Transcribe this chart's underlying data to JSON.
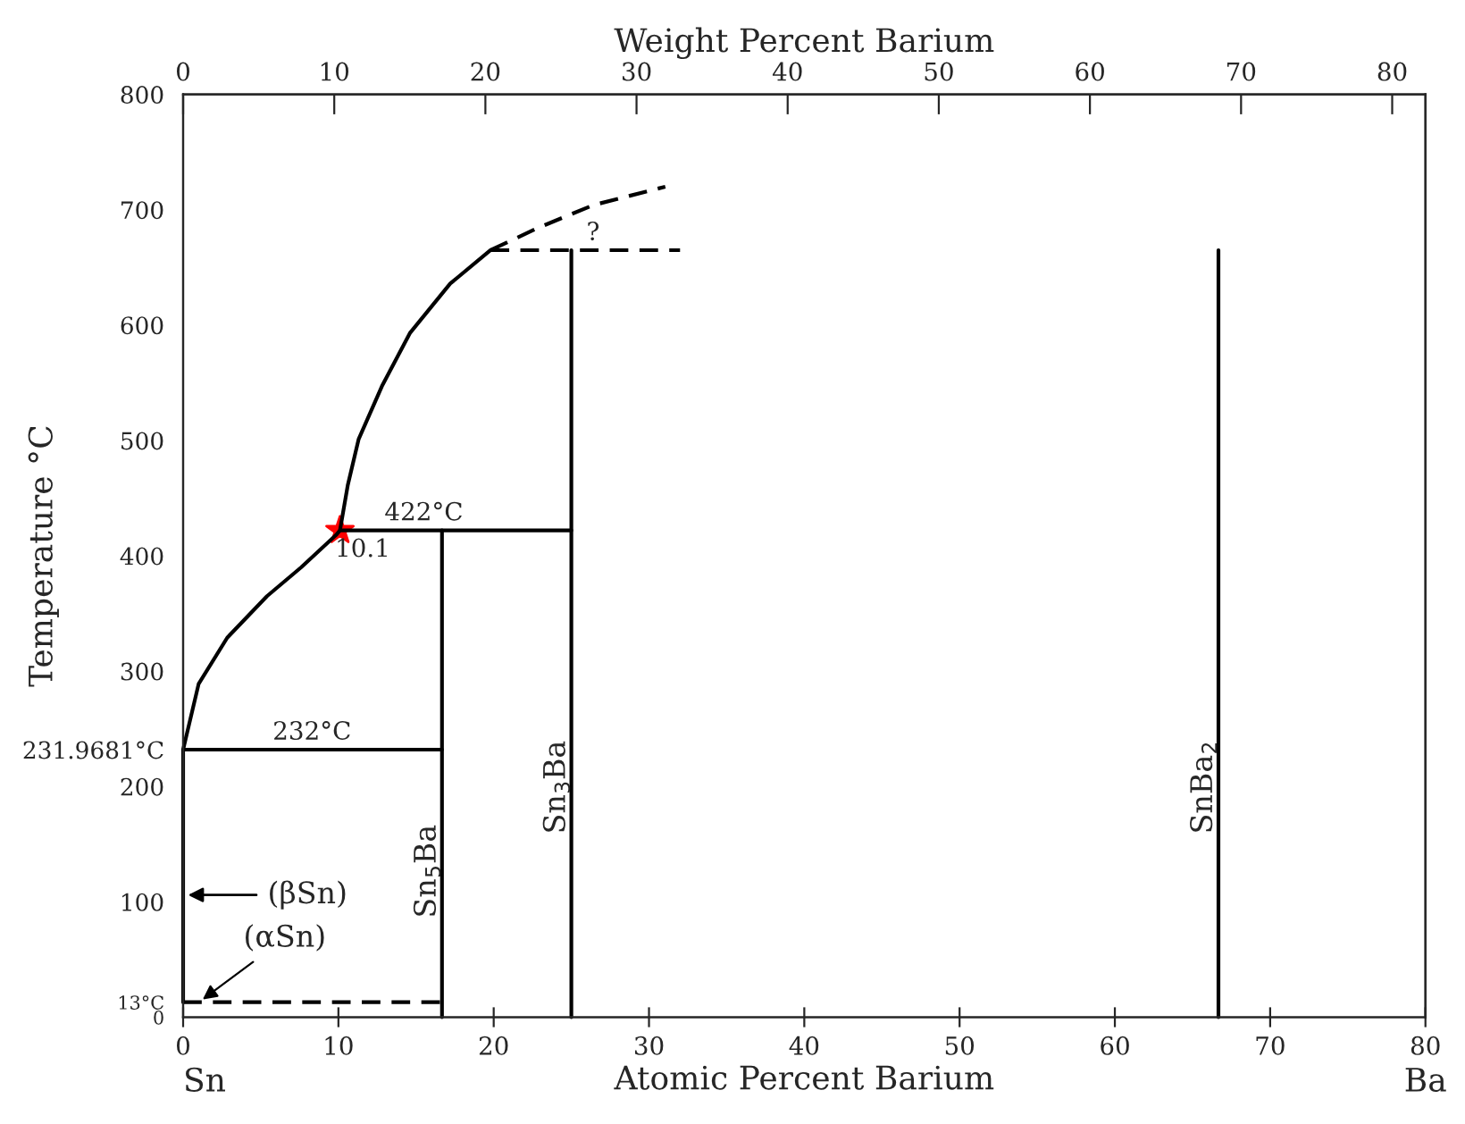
{
  "chart_data": {
    "type": "line",
    "xlabel": "Atomic Percent Barium",
    "ylabel": "Temperature °C",
    "x2label": "Weight Percent Barium",
    "xlim": [
      0,
      80
    ],
    "ylim": [
      0,
      800
    ],
    "xticks": [
      0,
      10,
      20,
      30,
      40,
      50,
      60,
      70,
      80
    ],
    "yticks": [
      0,
      {
        "value": 13,
        "label": "13°C"
      },
      100,
      {
        "value": 231.9681,
        "label": "231.9681°C"
      },
      200,
      300,
      400,
      500,
      600,
      700,
      800
    ],
    "x2lim": [
      0,
      82.2
    ],
    "x2ticks": [
      0,
      10,
      20,
      30,
      40,
      50,
      60,
      70,
      80
    ],
    "grid": false,
    "series": [
      {
        "color": "#000000",
        "line_style": "solid",
        "x": [
          0,
          0,
          1.0,
          2.84,
          5.4,
          7.6,
          9.85,
          10.1,
          10.6,
          11.3,
          12.8,
          14.6,
          17.2,
          19.8
        ],
        "values": [
          13,
          231.9681,
          289,
          329,
          365,
          390,
          418,
          422,
          461,
          501,
          547,
          593,
          636,
          665
        ]
      },
      {
        "color": "#000000",
        "line_style": "dashed",
        "x": [
          19.8,
          22.8,
          26.4,
          31.05
        ],
        "values": [
          665,
          684,
          704,
          720
        ]
      },
      {
        "color": "#000000",
        "line_style": "dashed",
        "x": [
          19.8,
          32
        ],
        "values": [
          665,
          665
        ]
      },
      {
        "color": "#000000",
        "line_style": "solid",
        "x": [
          10.1,
          25
        ],
        "values": [
          422,
          422
        ]
      },
      {
        "color": "#000000",
        "line_style": "solid",
        "x": [
          0,
          16.67
        ],
        "values": [
          231.9681,
          231.9681
        ]
      },
      {
        "color": "#000000",
        "line_style": "dashed",
        "x": [
          0,
          16.67
        ],
        "values": [
          13,
          13
        ]
      },
      {
        "name": "Sn$_{5}$Ba",
        "color": "#000000",
        "line_style": "solid",
        "x": [
          16.67,
          16.67
        ],
        "values": [
          0,
          422
        ]
      },
      {
        "name": "Sn$_{3}$Ba",
        "color": "#000000",
        "line_style": "solid",
        "x": [
          25,
          25
        ],
        "values": [
          0,
          665
        ]
      },
      {
        "name": "SnBa$_{2}$",
        "color": "#000000",
        "line_style": "solid",
        "x": [
          66.67,
          66.67
        ],
        "values": [
          0,
          665
        ]
      },
      {
        "type": "scatter",
        "marker": "star",
        "color": "#ff0000",
        "x": [
          10.1
        ],
        "values": [
          422
        ]
      }
    ],
    "annotations": [
      {
        "text": "422°C",
        "x": 15.5,
        "y": 422
      },
      {
        "text": "232°C",
        "x": 8.3,
        "y": 232
      },
      {
        "text": "10.1",
        "x": 10.1,
        "y": 422
      },
      {
        "text": "?",
        "x": 26.4,
        "y": 665
      },
      {
        "text": "(βSn)",
        "x": 0,
        "y": 106
      },
      "(αSn)",
      "Sn",
      "Ba"
    ]
  }
}
